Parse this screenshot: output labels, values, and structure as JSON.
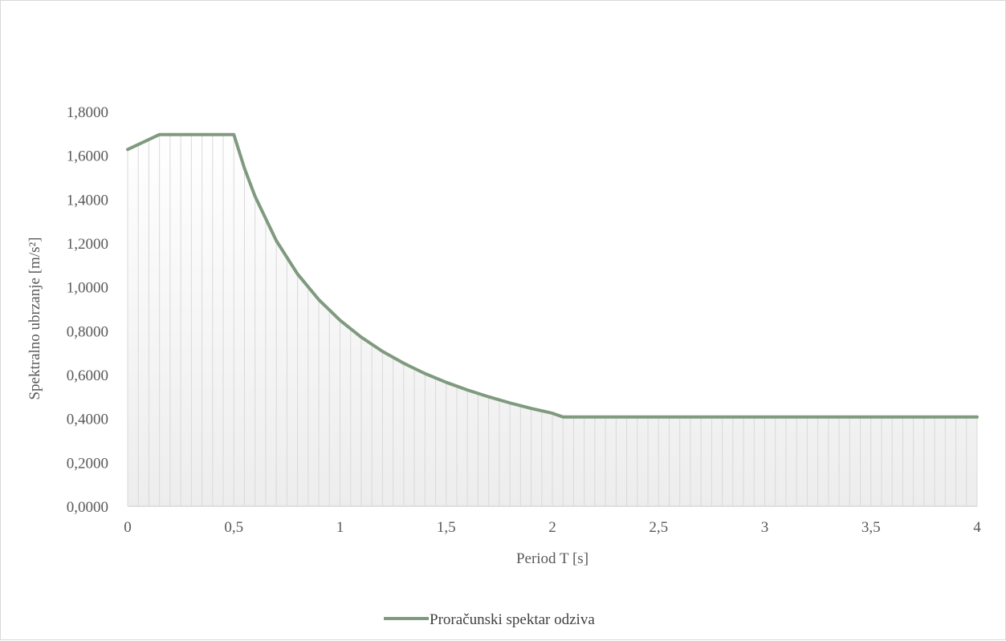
{
  "chart_data": {
    "type": "area",
    "title": "",
    "xlabel": "Period T [s]",
    "ylabel": "Spektralno ubrzanje [m/s²]",
    "xlim": [
      0,
      4
    ],
    "ylim": [
      0,
      1.8
    ],
    "x_ticks": [
      "0",
      "0,5",
      "1",
      "1,5",
      "2",
      "2,5",
      "3",
      "3,5",
      "4"
    ],
    "y_ticks": [
      "0,0000",
      "0,2000",
      "0,4000",
      "0,6000",
      "0,8000",
      "1,0000",
      "1,2000",
      "1,4000",
      "1,6000",
      "1,8000"
    ],
    "grid": false,
    "legend_position": "bottom",
    "colors": {
      "line": "#7f9a7f",
      "drop_lines": "#d9d9d9",
      "axis": "#d9d9d9",
      "fill_top": "#ffffff",
      "fill_bottom": "#ededed"
    },
    "series": [
      {
        "name": "Proračunski spektar odziva",
        "x": [
          0,
          0.15,
          0.2,
          0.3,
          0.4,
          0.5,
          0.55,
          0.6,
          0.7,
          0.8,
          0.9,
          1.0,
          1.1,
          1.2,
          1.3,
          1.4,
          1.5,
          1.6,
          1.7,
          1.8,
          1.9,
          2.0,
          2.05,
          2.5,
          3.0,
          3.5,
          4.0
        ],
        "values": [
          1.627,
          1.695,
          1.695,
          1.695,
          1.695,
          1.695,
          1.541,
          1.413,
          1.211,
          1.059,
          0.942,
          0.848,
          0.771,
          0.706,
          0.652,
          0.605,
          0.565,
          0.53,
          0.499,
          0.471,
          0.446,
          0.424,
          0.407,
          0.407,
          0.407,
          0.407,
          0.407
        ]
      }
    ]
  }
}
